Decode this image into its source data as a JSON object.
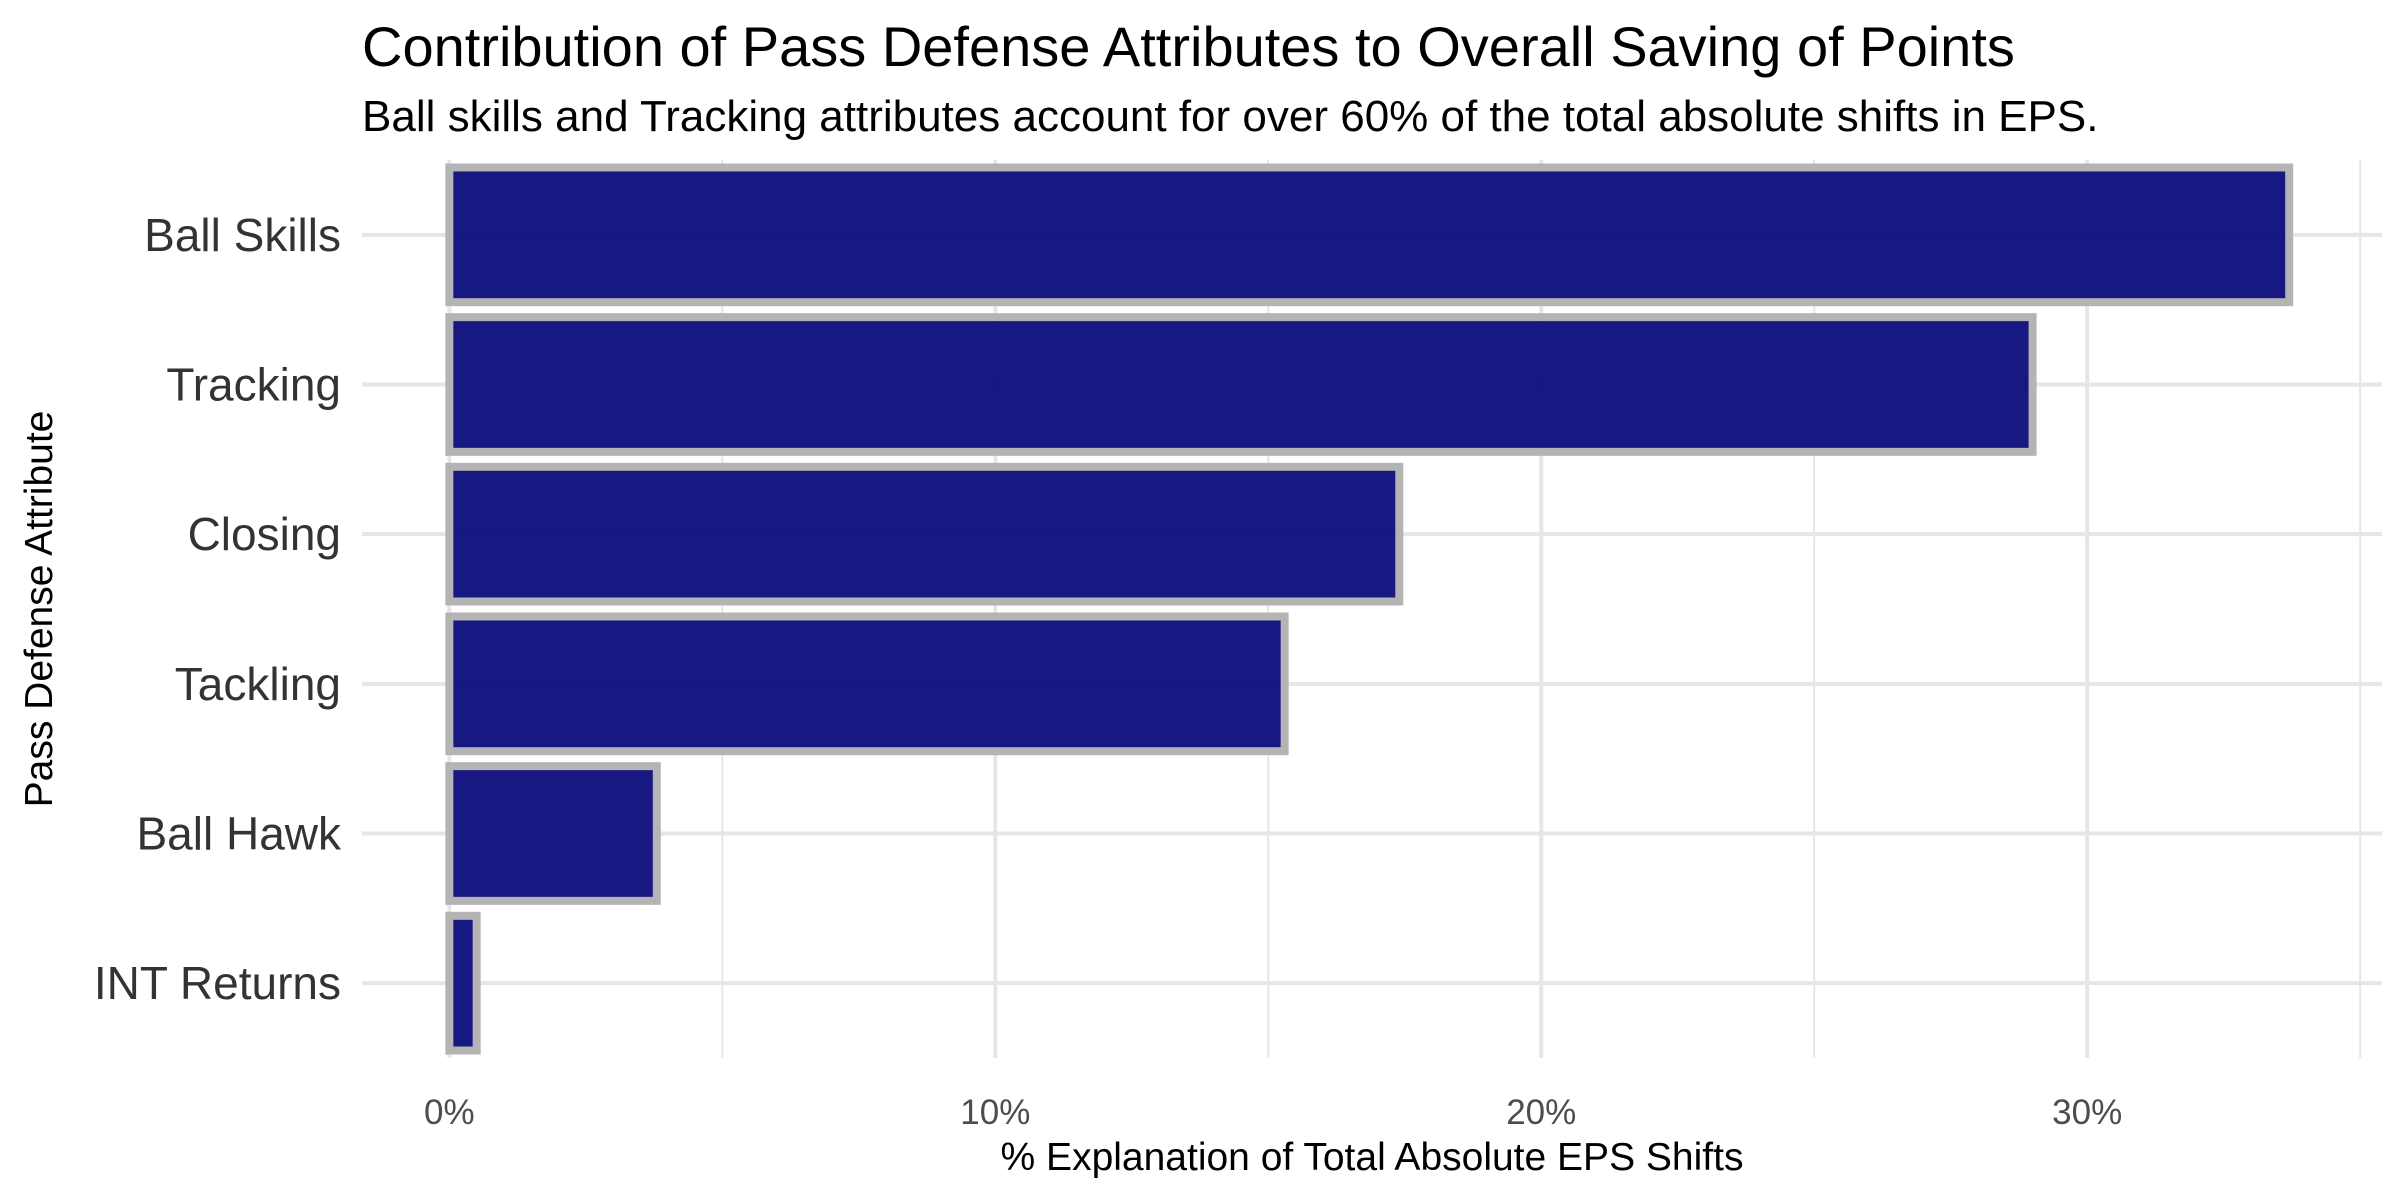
{
  "chart_data": {
    "type": "bar",
    "orientation": "horizontal",
    "title": "Contribution of Pass Defense Attributes to Overall Saving of Points",
    "subtitle": "Ball skills and Tracking attributes account for over 60% of the total absolute shifts in EPS.",
    "xlabel": "% Explanation of Total Absolute EPS Shifts",
    "ylabel": "Pass Defense Attribute",
    "categories": [
      "Ball Skills",
      "Tracking",
      "Closing",
      "Tackling",
      "Ball Hawk",
      "INT Returns"
    ],
    "values": [
      33.7,
      29.0,
      17.4,
      15.3,
      3.8,
      0.5
    ],
    "value_unit": "%",
    "xlim": [
      -1.6,
      35.4
    ],
    "x_ticks": [
      0,
      10,
      20,
      30
    ],
    "x_tick_labels": [
      "0%",
      "10%",
      "20%",
      "30%"
    ],
    "grid": true,
    "legend": "none",
    "colors": {
      "bar_fill": "#0a0a7a",
      "bar_outline": "#b4b4b4",
      "grid": "#e6e6e6",
      "tick_text": "#4d4d4d",
      "category_text": "#333333",
      "title_text": "#000000"
    }
  }
}
